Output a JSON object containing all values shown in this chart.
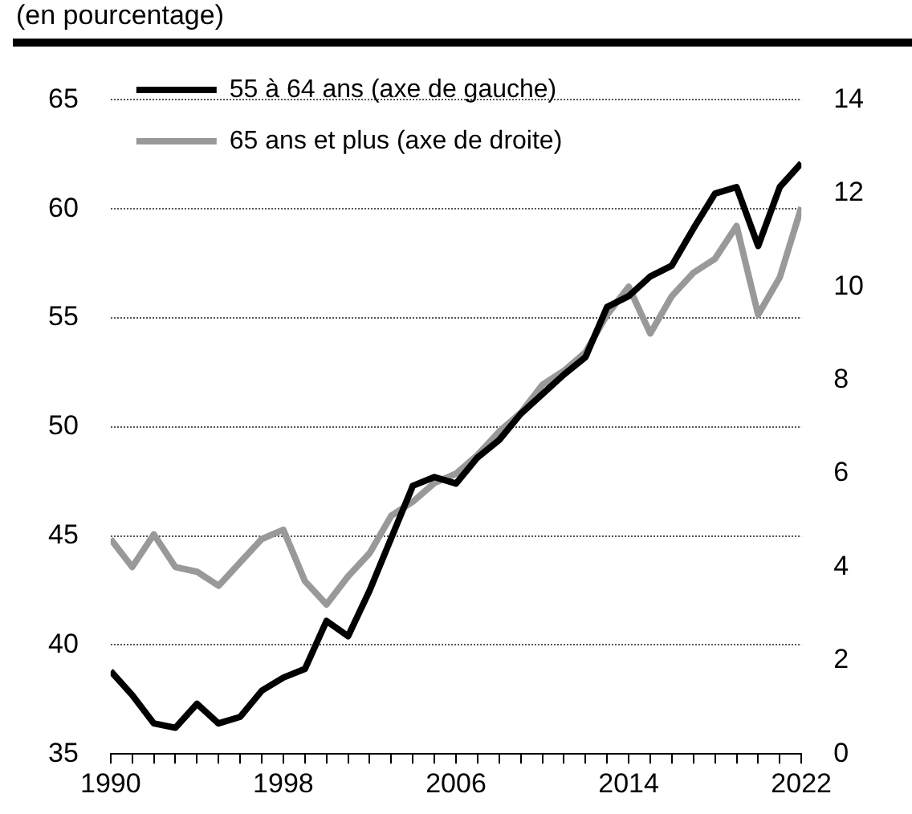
{
  "chart_data": {
    "type": "line",
    "title": "(en pourcentage)",
    "x": [
      1990,
      1991,
      1992,
      1993,
      1994,
      1995,
      1996,
      1997,
      1998,
      1999,
      2000,
      2001,
      2002,
      2003,
      2004,
      2005,
      2006,
      2007,
      2008,
      2009,
      2010,
      2011,
      2012,
      2013,
      2014,
      2015,
      2016,
      2017,
      2018,
      2019,
      2020,
      2021,
      2022
    ],
    "series": [
      {
        "name": "55 à 64 ans (axe de gauche)",
        "color": "#000000",
        "values": [
          38.8,
          37.7,
          36.4,
          36.2,
          37.3,
          36.4,
          36.7,
          37.9,
          38.5,
          38.9,
          41.1,
          40.4,
          42.5,
          44.9,
          47.3,
          47.7,
          47.4,
          48.6,
          49.4,
          50.6,
          51.5,
          52.4,
          53.2,
          55.5,
          56.0,
          56.9,
          57.4,
          59.1,
          60.7,
          61.0,
          58.3,
          61.0,
          62.1
        ]
      },
      {
        "name": "65 ans et plus (axe de droite)",
        "color": "#999999",
        "axis": "y2",
        "values": [
          4.6,
          4.0,
          4.7,
          4.0,
          3.9,
          3.6,
          4.1,
          4.6,
          4.8,
          3.7,
          3.2,
          3.8,
          4.3,
          5.1,
          5.4,
          5.8,
          6.0,
          6.4,
          6.9,
          7.3,
          7.9,
          8.2,
          8.6,
          9.4,
          10.0,
          9.0,
          9.8,
          10.3,
          10.6,
          11.3,
          9.4,
          10.2,
          11.7
        ]
      }
    ],
    "xlim": [
      1990,
      2022
    ],
    "xticks": [
      1990,
      {
        "value": 1991,
        "label": null
      },
      {
        "value": 1992,
        "label": null
      },
      {
        "value": 1993,
        "label": null
      },
      {
        "value": 1994,
        "label": null
      },
      {
        "value": 1995,
        "label": null
      },
      {
        "value": 1996,
        "label": null
      },
      {
        "value": 1997,
        "label": null
      },
      1998,
      {
        "value": 1999,
        "label": null
      },
      {
        "value": 2000,
        "label": null
      },
      {
        "value": 2001,
        "label": null
      },
      {
        "value": 2002,
        "label": null
      },
      {
        "value": 2003,
        "label": null
      },
      {
        "value": 2004,
        "label": null
      },
      {
        "value": 2005,
        "label": null
      },
      2006,
      {
        "value": 2007,
        "label": null
      },
      {
        "value": 2008,
        "label": null
      },
      {
        "value": 2009,
        "label": null
      },
      {
        "value": 2010,
        "label": null
      },
      {
        "value": 2011,
        "label": null
      },
      {
        "value": 2012,
        "label": null
      },
      {
        "value": 2013,
        "label": null
      },
      2014,
      {
        "value": 2015,
        "label": null
      },
      {
        "value": 2016,
        "label": null
      },
      {
        "value": 2017,
        "label": null
      },
      {
        "value": 2018,
        "label": null
      },
      {
        "value": 2019,
        "label": null
      },
      {
        "value": 2020,
        "label": null
      },
      {
        "value": 2021,
        "label": null
      },
      2022
    ],
    "ylim": [
      35,
      65
    ],
    "yticks": [
      35,
      40,
      45,
      50,
      55,
      60,
      65
    ],
    "y2lim": [
      0,
      14
    ],
    "y2ticks": [
      0,
      2,
      4,
      6,
      8,
      10,
      12,
      14
    ],
    "grid": "y",
    "legend": "top left",
    "marker": "none",
    "line_style": "solid"
  }
}
